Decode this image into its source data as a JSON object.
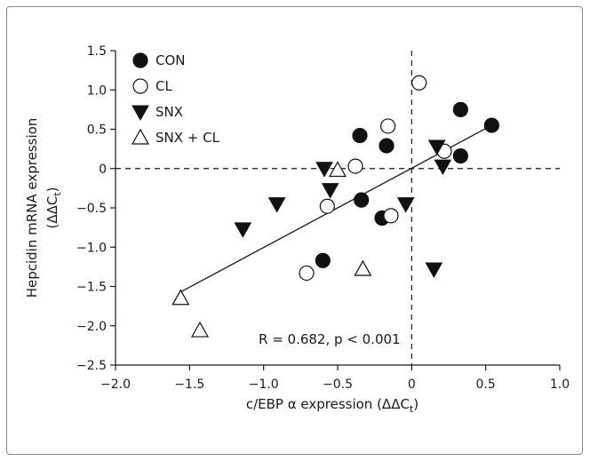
{
  "chart_data": {
    "type": "scatter",
    "xlabel": "c/EBP α expression (ΔΔC",
    "xlabel_sub": "t",
    "xlabel_close": ")",
    "ylabel": "Hepcidin mRNA expression",
    "ylabel2": "(ΔΔC",
    "ylabel2_sub": "t",
    "ylabel2_close": ")",
    "xlim": [
      -2.0,
      1.0
    ],
    "ylim": [
      -2.5,
      1.5
    ],
    "xticks": [
      -2.0,
      -1.5,
      -1.0,
      -0.5,
      0,
      0.5,
      1.0
    ],
    "xtick_labels": [
      "−2.0",
      "−1.5",
      "−1.0",
      "−0.5",
      "0",
      "0.5",
      "1.0"
    ],
    "yticks": [
      1.5,
      1.0,
      0.5,
      0,
      -0.5,
      -1.0,
      -1.5,
      -2.0,
      -2.5
    ],
    "ytick_labels": [
      "1.5",
      "1.0",
      "0.5",
      "0",
      "−0.5",
      "−1.0",
      "−1.5",
      "−2.0",
      "−2.5"
    ],
    "annotation": "R = 0.682, p < 0.001",
    "legend_position": "top-left",
    "reference_lines": {
      "x": 0,
      "y": 0,
      "style": "dashed"
    },
    "fit_line": {
      "x": [
        -1.56,
        0.54
      ],
      "y": [
        -1.57,
        0.55
      ]
    },
    "series": [
      {
        "name": "CON",
        "marker": "filled-circle",
        "points": [
          [
            -0.35,
            0.42
          ],
          [
            -0.17,
            0.29
          ],
          [
            0.33,
            0.75
          ],
          [
            0.54,
            0.55
          ],
          [
            0.33,
            0.16
          ],
          [
            -0.34,
            -0.4
          ],
          [
            -0.2,
            -0.63
          ],
          [
            -0.6,
            -1.17
          ]
        ]
      },
      {
        "name": "CL",
        "marker": "open-circle",
        "points": [
          [
            0.05,
            1.09
          ],
          [
            -0.16,
            0.54
          ],
          [
            -0.38,
            0.03
          ],
          [
            0.22,
            0.22
          ],
          [
            -0.57,
            -0.48
          ],
          [
            -0.14,
            -0.6
          ],
          [
            -0.71,
            -1.33
          ]
        ]
      },
      {
        "name": "SNX",
        "marker": "filled-triangle-down",
        "points": [
          [
            -0.59,
            0.0
          ],
          [
            -0.55,
            -0.27
          ],
          [
            -0.91,
            -0.45
          ],
          [
            -1.14,
            -0.77
          ],
          [
            -0.04,
            -0.45
          ],
          [
            0.17,
            0.28
          ],
          [
            0.21,
            0.03
          ],
          [
            0.15,
            -1.28
          ]
        ]
      },
      {
        "name": "SNX + CL",
        "marker": "open-triangle-up",
        "points": [
          [
            -0.5,
            -0.02
          ],
          [
            -0.33,
            -1.28
          ],
          [
            -1.56,
            -1.65
          ],
          [
            -1.43,
            -2.06
          ]
        ]
      }
    ]
  }
}
